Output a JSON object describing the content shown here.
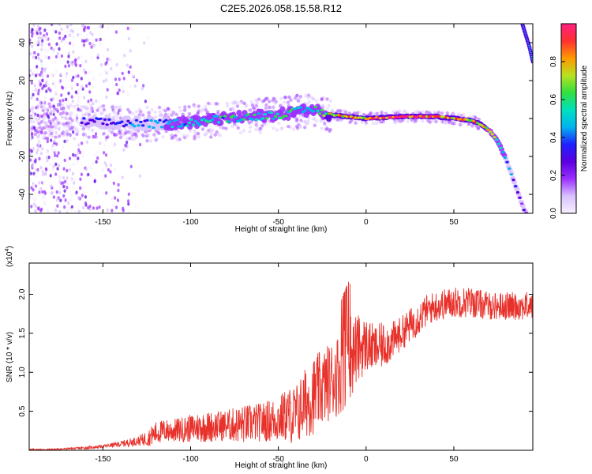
{
  "title": "C2E5.2026.058.15.58.R12",
  "colors": {
    "line": "#e8312a",
    "axis": "#000000",
    "background": "#ffffff",
    "colormap": [
      "#f7f0ff",
      "#d9c2ff",
      "#9b30ff",
      "#5a00e0",
      "#2020ff",
      "#00b4f0",
      "#00e0c0",
      "#30e040",
      "#b8e020",
      "#ff9a00",
      "#ff3030",
      "#ff2080"
    ]
  },
  "chart_data": [
    {
      "type": "heatmap",
      "name": "spectrogram",
      "xlabel": "Height of straight line (km)",
      "ylabel": "Frequency (Hz)",
      "xlim": [
        -192,
        95
      ],
      "ylim": [
        -50,
        50
      ],
      "xticks": [
        -150,
        -100,
        -50,
        0,
        50
      ],
      "xtick_labels": [
        "-150",
        "-100",
        "-50",
        "0",
        "50"
      ],
      "yticks": [
        -40,
        -20,
        0,
        20,
        40
      ],
      "ytick_labels": [
        "-40",
        "-20",
        "0",
        "20",
        "40"
      ],
      "main_track": {
        "x": [
          -192,
          -150,
          -120,
          -100,
          -80,
          -50,
          -30,
          -20,
          0,
          20,
          40,
          50,
          60,
          65,
          70,
          75,
          80,
          85,
          88,
          90,
          95
        ],
        "y": [
          -1,
          -2,
          -3,
          -2,
          0,
          2,
          5,
          2,
          0,
          1,
          1,
          0,
          -1,
          -3,
          -6,
          -12,
          -22,
          -35,
          -43,
          -48,
          -55
        ],
        "amplitude": [
          0.3,
          0.35,
          0.45,
          0.55,
          0.55,
          0.6,
          0.55,
          0.8,
          0.85,
          0.95,
          0.9,
          0.85,
          0.8,
          0.75,
          0.7,
          0.6,
          0.45,
          0.35,
          0.3,
          0.25,
          0.2
        ]
      },
      "aliased_track": {
        "x": [
          89,
          91,
          93,
          95
        ],
        "y": [
          50,
          44,
          38,
          30
        ]
      },
      "colorbar": {
        "label": "Normalized spectral amplitude",
        "range": [
          0,
          1
        ],
        "ticks": [
          0,
          0.2,
          0.4,
          0.6,
          0.8
        ],
        "tick_labels": [
          "0.0",
          "0.2",
          "0.4",
          "0.6",
          "0.8"
        ]
      }
    },
    {
      "type": "line",
      "name": "snr",
      "xlabel": "Height of straight line (km)",
      "ylabel": "SNR (10 * v/v)",
      "scale_label": "(x10",
      "scale_exponent": "4",
      "scale_suffix": ")",
      "xlim": [
        -192,
        95
      ],
      "ylim": [
        0,
        2.4
      ],
      "xticks": [
        -150,
        -100,
        -50,
        0,
        50
      ],
      "xtick_labels": [
        "-150",
        "-100",
        "-50",
        "0",
        "50"
      ],
      "yticks": [
        0.5,
        1.0,
        1.5,
        2.0
      ],
      "ytick_labels": [
        "0.5",
        "1.0",
        "1.5",
        "2.0"
      ],
      "series": [
        {
          "name": "SNR",
          "x": [
            -192,
            -180,
            -170,
            -160,
            -150,
            -140,
            -130,
            -125,
            -120,
            -115,
            -110,
            -100,
            -95,
            -90,
            -80,
            -70,
            -60,
            -50,
            -45,
            -40,
            -35,
            -30,
            -25,
            -20,
            -15,
            -10,
            -5,
            0,
            5,
            10,
            15,
            20,
            25,
            30,
            35,
            40,
            50,
            60,
            70,
            80,
            90,
            95
          ],
          "y": [
            0.01,
            0.01,
            0.02,
            0.03,
            0.05,
            0.08,
            0.12,
            0.15,
            0.22,
            0.25,
            0.25,
            0.28,
            0.3,
            0.3,
            0.32,
            0.33,
            0.36,
            0.4,
            0.45,
            0.45,
            0.6,
            0.7,
            0.8,
            0.9,
            1.0,
            1.2,
            1.3,
            1.35,
            1.3,
            1.35,
            1.4,
            1.5,
            1.6,
            1.7,
            1.8,
            1.85,
            1.9,
            1.9,
            1.85,
            1.85,
            1.85,
            1.85
          ],
          "noise_amplitude": [
            0.01,
            0.01,
            0.01,
            0.02,
            0.02,
            0.04,
            0.06,
            0.1,
            0.15,
            0.15,
            0.15,
            0.18,
            0.2,
            0.2,
            0.2,
            0.25,
            0.25,
            0.3,
            0.35,
            0.4,
            0.45,
            0.5,
            0.5,
            0.5,
            0.55,
            0.6,
            0.45,
            0.35,
            0.3,
            0.3,
            0.25,
            0.22,
            0.22,
            0.22,
            0.2,
            0.2,
            0.2,
            0.2,
            0.18,
            0.18,
            0.18,
            0.18
          ]
        }
      ]
    }
  ]
}
